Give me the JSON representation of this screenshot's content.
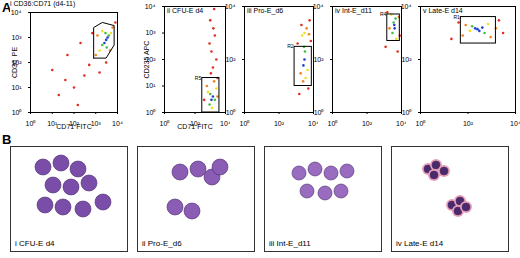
{
  "panel_labels": [
    "A",
    "B"
  ],
  "chart_data": [
    {
      "type": "scatter",
      "title": "i CD36:CD71 (d4-11)",
      "xlabel": "CD71 FITC",
      "ylabel": "CD36  PE",
      "log": true,
      "tick_labels": true,
      "xlim": [
        1,
        10000
      ],
      "ylim": [
        1,
        10000
      ],
      "xticks": [
        {
          "value": 1,
          "label": "10⁰"
        },
        {
          "value": 10,
          "label": "10¹"
        },
        {
          "value": 100,
          "label": "10²"
        },
        {
          "value": 1000,
          "label": "10³"
        },
        {
          "value": 10000,
          "label": "10⁴"
        }
      ],
      "yticks": [
        {
          "value": 1,
          "label": "10⁰"
        },
        {
          "value": 10,
          "label": "10¹"
        },
        {
          "value": 100,
          "label": "10²"
        },
        {
          "value": 1000,
          "label": "10³"
        },
        {
          "value": 10000,
          "label": "10⁴"
        }
      ],
      "x": [
        300,
        100,
        50,
        20,
        500,
        8000,
        700,
        10,
        200,
        3000,
        40,
        150,
        1500,
        1000,
        6000,
        1200,
        4500,
        1500,
        5000,
        2000,
        2000,
        4000,
        2800,
        3200,
        3000,
        2500,
        3500
      ],
      "values": [
        30,
        10,
        200,
        5,
        80,
        4000,
        1500,
        50,
        600,
        100,
        20,
        2,
        40,
        200,
        2500,
        1200,
        300,
        300,
        1500,
        1800,
        500,
        1200,
        1500,
        400,
        800,
        600,
        1000
      ],
      "colors": [
        "#e03020",
        "#e03020",
        "#e03020",
        "#e03020",
        "#e03020",
        "#e03020",
        "#e03020",
        "#e03020",
        "#e03020",
        "#e03020",
        "#e03020",
        "#e03020",
        "#e03020",
        "#f08020",
        "#f08020",
        "#f08020",
        "#f08020",
        "#f0e020",
        "#f0e020",
        "#f0e020",
        "#40c040",
        "#40c040",
        "#40c040",
        "#40c040",
        "#2040d0",
        "#2040d0",
        "#2040d0"
      ],
      "gate_polygon": [
        [
          800,
          150
        ],
        [
          800,
          2500
        ],
        [
          2000,
          4000
        ],
        [
          7000,
          3000
        ],
        [
          7000,
          500
        ],
        [
          3000,
          150
        ],
        [
          800,
          150
        ]
      ]
    },
    {
      "type": "scatter",
      "title": "ii CFU-E  d4",
      "xlabel": "CD71 FITC",
      "ylabel": "CD235 APC",
      "log": true,
      "tick_labels": true,
      "xlim": [
        1,
        10000
      ],
      "ylim": [
        1,
        10000
      ],
      "xticks": [
        {
          "value": 1,
          "label": "10⁰"
        },
        {
          "value": 100,
          "label": "10²"
        },
        {
          "value": 10000,
          "label": "10⁴"
        }
      ],
      "yticks": [
        {
          "value": 1,
          "label": "10⁰"
        },
        {
          "value": 10,
          "label": "10¹"
        },
        {
          "value": 100,
          "label": "10²"
        },
        {
          "value": 1000,
          "label": "10³"
        },
        {
          "value": 10000,
          "label": "10⁴"
        }
      ],
      "x": [
        1500,
        1200,
        2000,
        1000,
        1800,
        2500,
        900,
        1600,
        3000,
        400,
        1100,
        600,
        3000,
        1800,
        700,
        2500,
        1300,
        1000,
        2000,
        900,
        1200,
        1500
      ],
      "values": [
        50,
        200,
        800,
        3000,
        8000,
        100,
        400,
        1500,
        20,
        3,
        30,
        10,
        4,
        15,
        6,
        8,
        1.5,
        5,
        3,
        2,
        3,
        4
      ],
      "colors": [
        "#e03020",
        "#e03020",
        "#e03020",
        "#e03020",
        "#e03020",
        "#e03020",
        "#e03020",
        "#e03020",
        "#e03020",
        "#e03020",
        "#e03020",
        "#f08020",
        "#f08020",
        "#f08020",
        "#f0e020",
        "#f0e020",
        "#f0e020",
        "#40c040",
        "#40c040",
        "#40c040",
        "#2040d0",
        "#2040d0"
      ],
      "gates": [
        {
          "label": "R5",
          "x": [
            300,
            4000
          ],
          "y": [
            1,
            20
          ]
        }
      ]
    },
    {
      "type": "scatter",
      "title": "iii Pro-E_d6",
      "xlabel": null,
      "ylabel": null,
      "log": true,
      "tick_labels": true,
      "xlim": [
        1,
        10000
      ],
      "ylim": [
        1,
        10000
      ],
      "xticks": [
        {
          "value": 1,
          "label": "10⁰"
        },
        {
          "value": 100,
          "label": "10²"
        },
        {
          "value": 10000,
          "label": "10⁴"
        }
      ],
      "yticks": [
        {
          "value": 1,
          "label": "10⁰"
        },
        {
          "value": 100,
          "label": "10²"
        },
        {
          "value": 10000,
          "label": "10⁴"
        }
      ],
      "x": [
        1500,
        6000,
        2000,
        5000,
        1200,
        7000,
        2500,
        4000,
        1800,
        5500,
        2200,
        4500,
        3000,
        3500,
        2800,
        3200,
        2600,
        3000
      ],
      "values": [
        5,
        3000,
        2000,
        8,
        400,
        500,
        15,
        1500,
        30,
        900,
        800,
        40,
        1000,
        20,
        300,
        200,
        60,
        100
      ],
      "colors": [
        "#e03020",
        "#e03020",
        "#e03020",
        "#e03020",
        "#e03020",
        "#e03020",
        "#f08020",
        "#f08020",
        "#f08020",
        "#f08020",
        "#f0e020",
        "#f0e020",
        "#f0e020",
        "#f0e020",
        "#40c040",
        "#40c040",
        "#2040d0",
        "#2040d0"
      ],
      "gates": [
        {
          "label": "R2",
          "x": [
            800,
            8000
          ],
          "y": [
            10,
            300
          ]
        }
      ]
    },
    {
      "type": "scatter",
      "title": "iv Int-E_d11",
      "xlabel": null,
      "ylabel": null,
      "log": true,
      "tick_labels": true,
      "xlim": [
        1,
        10000
      ],
      "ylim": [
        1,
        10000
      ],
      "xticks": [
        {
          "value": 1,
          "label": "10⁰"
        },
        {
          "value": 100,
          "label": "10²"
        },
        {
          "value": 10000,
          "label": "10⁴"
        }
      ],
      "yticks": [
        {
          "value": 1,
          "label": "10⁰"
        },
        {
          "value": 100,
          "label": "10²"
        },
        {
          "value": 10000,
          "label": "10⁴"
        }
      ],
      "x": [
        1200,
        8000,
        1500,
        6000,
        2000,
        7000,
        2500,
        5000,
        3000,
        4500,
        3500,
        4000,
        3800
      ],
      "values": [
        300,
        800,
        6000,
        200,
        1500,
        4000,
        5000,
        600,
        1000,
        3500,
        2500,
        1500,
        2000
      ],
      "colors": [
        "#e03020",
        "#e03020",
        "#e03020",
        "#e03020",
        "#f08020",
        "#f08020",
        "#f0e020",
        "#f0e020",
        "#40c040",
        "#40c040",
        "#40c040",
        "#2040d0",
        "#2040d0"
      ],
      "gates": [
        {
          "label": "R4",
          "x": [
            1500,
            8000
          ],
          "y": [
            500,
            5000
          ]
        }
      ]
    },
    {
      "type": "scatter",
      "title": "v Late-E  d14",
      "xlabel": null,
      "ylabel": null,
      "log": true,
      "tick_labels": true,
      "xlim": [
        1,
        10000
      ],
      "ylim": [
        1,
        10000
      ],
      "xticks": [
        {
          "value": 1,
          "label": "10⁰"
        },
        {
          "value": 100,
          "label": "10²"
        },
        {
          "value": 10000,
          "label": "10⁴"
        }
      ],
      "yticks": [
        {
          "value": 1,
          "label": "10⁰"
        },
        {
          "value": 100,
          "label": "10²"
        },
        {
          "value": 10000,
          "label": "10⁴"
        }
      ],
      "x": [
        20,
        3000,
        40,
        2000,
        60,
        1500,
        80,
        900,
        120,
        700,
        150,
        500,
        200,
        300,
        250,
        400
      ],
      "values": [
        600,
        1000,
        2500,
        3000,
        800,
        1500,
        2000,
        700,
        1200,
        2200,
        1800,
        1000,
        1500,
        1200,
        1400,
        1600
      ],
      "colors": [
        "#e03020",
        "#e03020",
        "#e03020",
        "#e03020",
        "#f08020",
        "#f08020",
        "#f08020",
        "#f08020",
        "#f0e020",
        "#f0e020",
        "#40c040",
        "#40c040",
        "#2040d0",
        "#2040d0",
        "#2040d0",
        "#2040d0"
      ],
      "gates": [
        {
          "label": "R1",
          "x": [
            50,
            1500
          ],
          "y": [
            400,
            4000
          ]
        }
      ]
    }
  ],
  "panel_b": [
    "i CFU-E  d4",
    "ii Pro-E_d6",
    "iii Int-E_d11",
    "iv Late-E  d14"
  ]
}
